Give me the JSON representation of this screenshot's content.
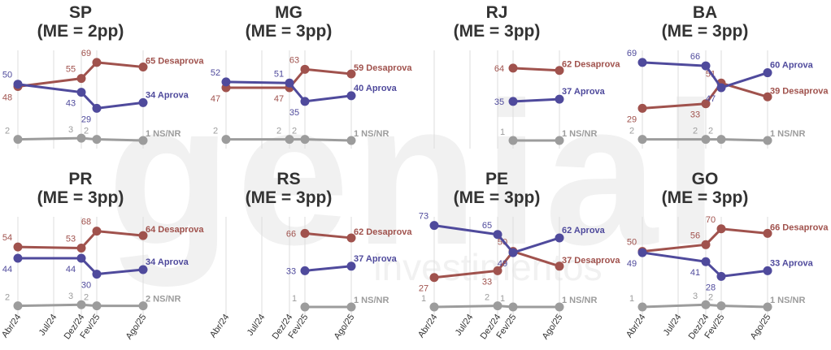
{
  "watermark": {
    "brand": "genial",
    "sub": "investimentos"
  },
  "colors": {
    "aprova": "#4f4a9c",
    "desaprova": "#a0524d",
    "nsnr": "#9c9c9c",
    "grid": "#dddddd"
  },
  "chart_data": [
    {
      "type": "line",
      "title": "SP",
      "subtitle": "(ME = 2pp)",
      "x": [
        "Abr/24",
        "Jul/24",
        "Dez/24",
        "Fev/25",
        "Ago/25"
      ],
      "series": [
        {
          "name": "Desaprova",
          "values": [
            48,
            null,
            55,
            69,
            65
          ],
          "end_label": "65 Desaprova"
        },
        {
          "name": "Aprova",
          "values": [
            50,
            null,
            43,
            29,
            34
          ],
          "end_label": "34 Aprova"
        },
        {
          "name": "NS/NR",
          "values": [
            2,
            null,
            3,
            2,
            1
          ],
          "end_label": "1 NS/NR"
        }
      ]
    },
    {
      "type": "line",
      "title": "MG",
      "subtitle": "(ME = 3pp)",
      "x": [
        "Abr/24",
        "Jul/24",
        "Dez/24",
        "Fev/25",
        "Ago/25"
      ],
      "series": [
        {
          "name": "Desaprova",
          "values": [
            47,
            null,
            47,
            63,
            59
          ],
          "end_label": "59 Desaprova"
        },
        {
          "name": "Aprova",
          "values": [
            52,
            null,
            51,
            35,
            40
          ],
          "end_label": "40 Aprova"
        },
        {
          "name": "NS/NR",
          "values": [
            2,
            null,
            2,
            2,
            1
          ],
          "end_label": "1 NS/NR"
        }
      ]
    },
    {
      "type": "line",
      "title": "RJ",
      "subtitle": "(ME = 3pp)",
      "x": [
        "Abr/24",
        "Jul/24",
        "Dez/24",
        "Fev/25",
        "Ago/25"
      ],
      "series": [
        {
          "name": "Desaprova",
          "values": [
            null,
            null,
            null,
            64,
            62
          ],
          "end_label": "62 Desaprova"
        },
        {
          "name": "Aprova",
          "values": [
            null,
            null,
            null,
            35,
            37
          ],
          "end_label": "37 Aprova"
        },
        {
          "name": "NS/NR",
          "values": [
            null,
            null,
            null,
            1,
            1
          ],
          "end_label": "1 NS/NR"
        }
      ]
    },
    {
      "type": "line",
      "title": "BA",
      "subtitle": "(ME = 3pp)",
      "x": [
        "Abr/24",
        "Jul/24",
        "Dez/24",
        "Fev/25",
        "Ago/25"
      ],
      "series": [
        {
          "name": "Desaprova",
          "values": [
            29,
            null,
            33,
            51,
            39
          ],
          "end_label": "39 Desaprova"
        },
        {
          "name": "Aprova",
          "values": [
            69,
            null,
            66,
            47,
            60
          ],
          "end_label": "60 Aprova"
        },
        {
          "name": "NS/NR",
          "values": [
            2,
            null,
            2,
            2,
            1
          ],
          "end_label": "1 NS/NR"
        }
      ]
    },
    {
      "type": "line",
      "title": "PR",
      "subtitle": "(ME = 3pp)",
      "x": [
        "Abr/24",
        "Jul/24",
        "Dez/24",
        "Fev/25",
        "Ago/25"
      ],
      "series": [
        {
          "name": "Desaprova",
          "values": [
            54,
            null,
            53,
            68,
            64
          ],
          "end_label": "64 Desaprova"
        },
        {
          "name": "Aprova",
          "values": [
            44,
            null,
            44,
            30,
            34
          ],
          "end_label": "34 Aprova"
        },
        {
          "name": "NS/NR",
          "values": [
            2,
            null,
            3,
            2,
            2
          ],
          "end_label": "2 NS/NR"
        }
      ]
    },
    {
      "type": "line",
      "title": "RS",
      "subtitle": "(ME = 3pp)",
      "x": [
        "Abr/24",
        "Jul/24",
        "Dez/24",
        "Fev/25",
        "Ago/25"
      ],
      "series": [
        {
          "name": "Desaprova",
          "values": [
            null,
            null,
            null,
            66,
            62
          ],
          "end_label": "62 Desaprova"
        },
        {
          "name": "Aprova",
          "values": [
            null,
            null,
            null,
            33,
            37
          ],
          "end_label": "37 Aprova"
        },
        {
          "name": "NS/NR",
          "values": [
            null,
            null,
            null,
            1,
            1
          ],
          "end_label": "1 NS/NR"
        }
      ]
    },
    {
      "type": "line",
      "title": "PE",
      "subtitle": "(ME = 3pp)",
      "x": [
        "Abr/24",
        "Jul/24",
        "Dez/24",
        "Fev/25",
        "Ago/25"
      ],
      "series": [
        {
          "name": "Desaprova",
          "values": [
            27,
            null,
            33,
            50,
            37
          ],
          "end_label": "37 Desaprova"
        },
        {
          "name": "Aprova",
          "values": [
            73,
            null,
            65,
            49,
            62
          ],
          "end_label": "62 Aprova"
        },
        {
          "name": "NS/NR",
          "values": [
            1,
            null,
            2,
            1,
            1
          ],
          "end_label": "1 NS/NR"
        }
      ]
    },
    {
      "type": "line",
      "title": "GO",
      "subtitle": "(ME = 3pp)",
      "x": [
        "Abr/24",
        "Jul/24",
        "Dez/24",
        "Fev/25",
        "Ago/25"
      ],
      "series": [
        {
          "name": "Desaprova",
          "values": [
            50,
            null,
            56,
            70,
            66
          ],
          "end_label": "66 Desaprova"
        },
        {
          "name": "Aprova",
          "values": [
            49,
            null,
            41,
            28,
            33
          ],
          "end_label": "33 Aprova"
        },
        {
          "name": "NS/NR",
          "values": [
            1,
            null,
            3,
            2,
            1
          ],
          "end_label": "1 NS/NR"
        }
      ]
    }
  ]
}
